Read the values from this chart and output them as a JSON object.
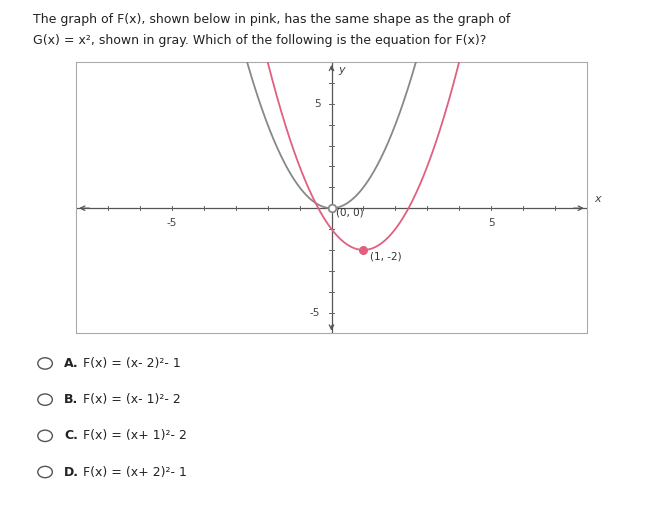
{
  "title_line1": "The graph of F(x), shown below in pink, has the same shape as the graph of",
  "title_line2": "G(x) = x², shown in gray. Which of the following is the equation for F(x)?",
  "xlim": [
    -8,
    8
  ],
  "ylim": [
    -6,
    7
  ],
  "gray_color": "#888888",
  "pink_color": "#e06080",
  "point_gray": [
    0,
    0
  ],
  "point_pink": [
    1,
    -2
  ],
  "point_gray_label": "(0, 0)",
  "point_pink_label": "(1, -2)",
  "answer_labels": [
    "A.",
    "B.",
    "C.",
    "D."
  ],
  "answer_formulas": [
    "F(x) = (x- 2)²- 1",
    "F(x) = (x- 1)²- 2",
    "F(x) = (x+ 1)²- 2",
    "F(x) = (x+ 2)²- 1"
  ],
  "bg_color": "#ffffff",
  "plot_bg_color": "#ffffff",
  "axis_color": "#555555",
  "tick_color": "#666666",
  "border_color": "#aaaaaa",
  "separator_color": "#cccccc"
}
